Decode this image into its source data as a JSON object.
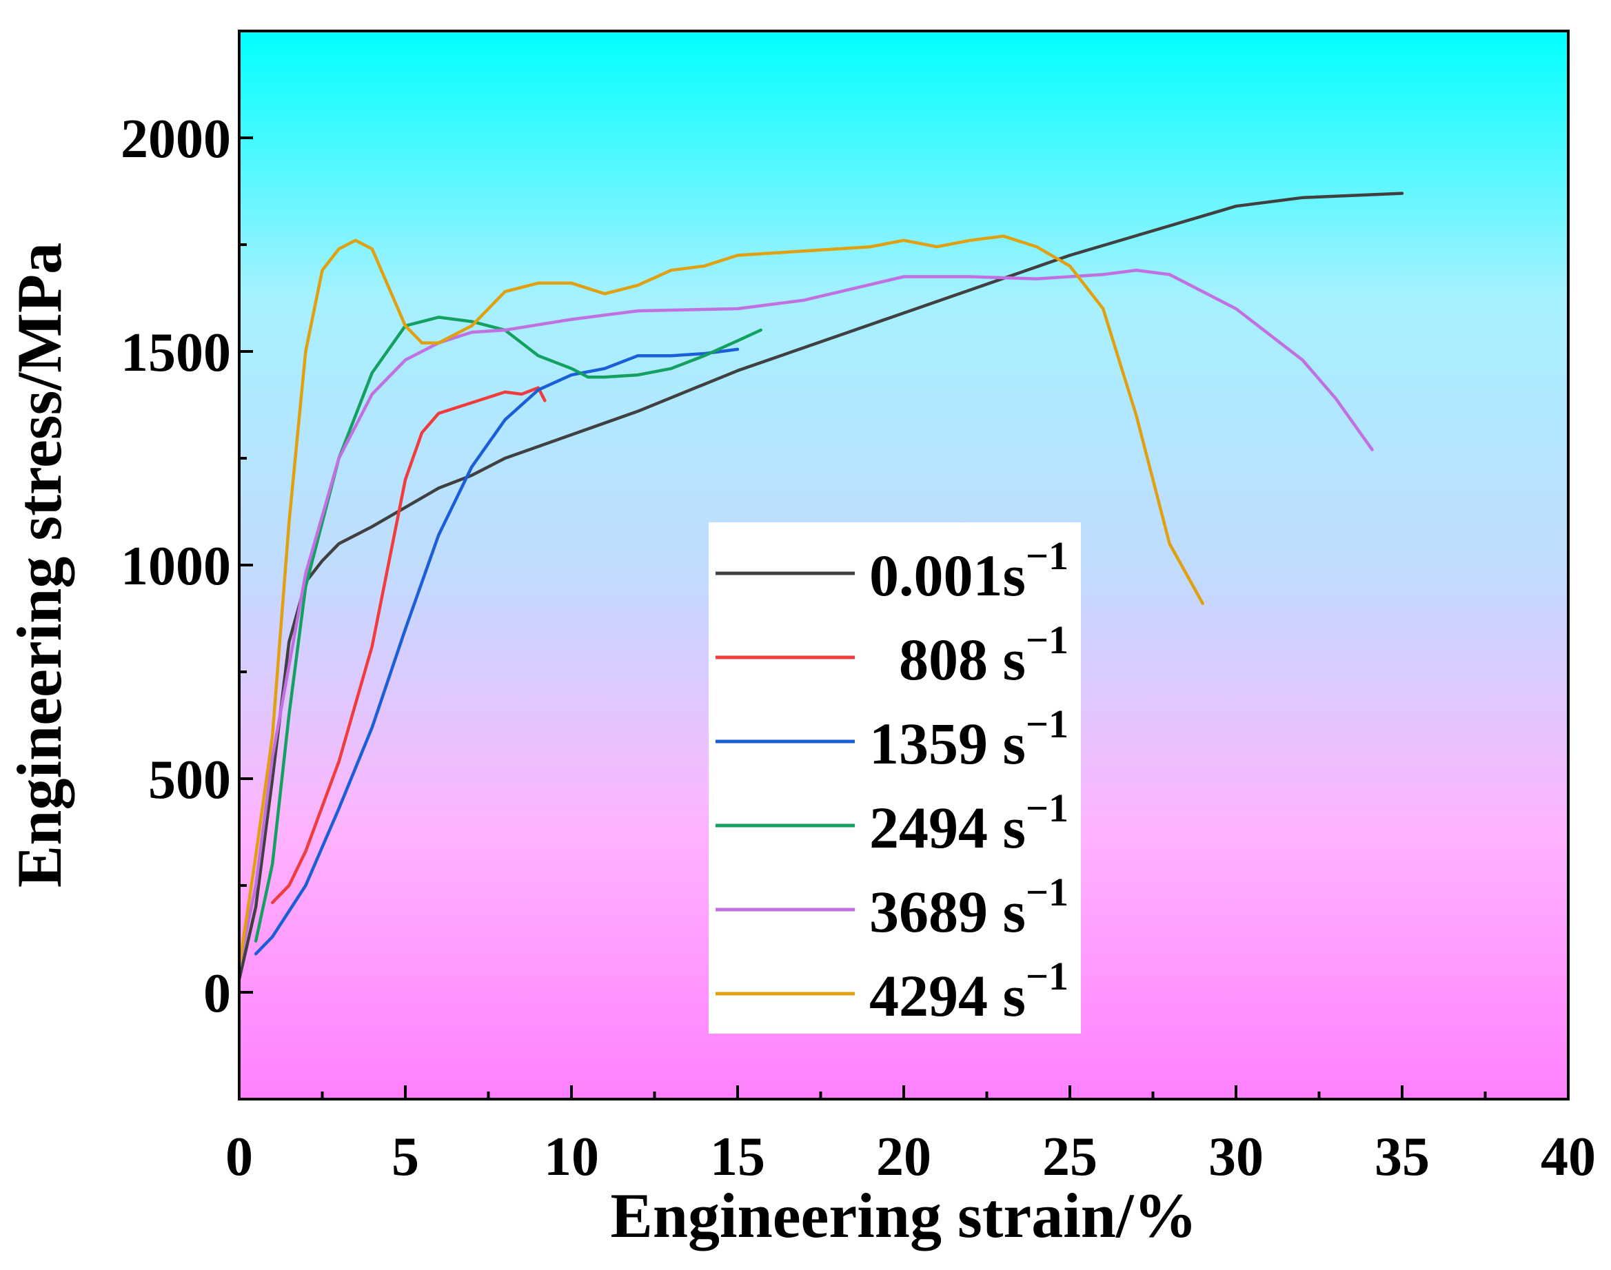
{
  "chart_data": {
    "type": "line",
    "xlabel": "Engineering strain/%",
    "ylabel": "Engineering stress/MPa",
    "xlim": [
      0,
      40
    ],
    "ylim": [
      -250,
      2250
    ],
    "x_ticks": [
      0,
      5,
      10,
      15,
      20,
      25,
      30,
      35,
      40
    ],
    "y_ticks": [
      0,
      500,
      1000,
      1500,
      2000
    ],
    "grid": false,
    "legend_position": "center-right",
    "background_gradient": [
      "#ff80ff",
      "#ffb3ff",
      "#c0dcff",
      "#a6f1ff",
      "#00ffff"
    ],
    "series": [
      {
        "name": "0.001s",
        "superscript": "−1",
        "color": "#404040",
        "points": [
          [
            0,
            30
          ],
          [
            0.5,
            200
          ],
          [
            1,
            500
          ],
          [
            1.5,
            820
          ],
          [
            2,
            960
          ],
          [
            2.5,
            1010
          ],
          [
            3,
            1050
          ],
          [
            4,
            1090
          ],
          [
            5,
            1135
          ],
          [
            6,
            1180
          ],
          [
            7,
            1210
          ],
          [
            8,
            1250
          ],
          [
            10,
            1305
          ],
          [
            12,
            1360
          ],
          [
            15,
            1455
          ],
          [
            20,
            1590
          ],
          [
            25,
            1725
          ],
          [
            30,
            1840
          ],
          [
            32,
            1860
          ],
          [
            35,
            1870
          ]
        ]
      },
      {
        "name": "808 s",
        "superscript": "−1",
        "color": "#f03c3c",
        "points": [
          [
            1,
            210
          ],
          [
            1.5,
            250
          ],
          [
            2,
            330
          ],
          [
            3,
            540
          ],
          [
            4,
            810
          ],
          [
            5,
            1200
          ],
          [
            5.5,
            1310
          ],
          [
            6,
            1355
          ],
          [
            7,
            1380
          ],
          [
            8,
            1405
          ],
          [
            8.5,
            1400
          ],
          [
            9,
            1415
          ],
          [
            9.2,
            1385
          ]
        ]
      },
      {
        "name": "1359 s",
        "superscript": "−1",
        "color": "#1a5ed8",
        "points": [
          [
            0.5,
            90
          ],
          [
            1,
            130
          ],
          [
            2,
            250
          ],
          [
            3,
            430
          ],
          [
            4,
            620
          ],
          [
            5,
            850
          ],
          [
            6,
            1070
          ],
          [
            7,
            1230
          ],
          [
            8,
            1340
          ],
          [
            9,
            1410
          ],
          [
            10,
            1445
          ],
          [
            11,
            1460
          ],
          [
            12,
            1490
          ],
          [
            13,
            1490
          ],
          [
            14,
            1495
          ],
          [
            15,
            1505
          ]
        ]
      },
      {
        "name": "2494 s",
        "superscript": "−1",
        "color": "#14a060",
        "points": [
          [
            0.5,
            120
          ],
          [
            1,
            300
          ],
          [
            1.5,
            650
          ],
          [
            2,
            950
          ],
          [
            3,
            1250
          ],
          [
            4,
            1450
          ],
          [
            5,
            1560
          ],
          [
            6,
            1580
          ],
          [
            7,
            1570
          ],
          [
            8,
            1550
          ],
          [
            9,
            1490
          ],
          [
            10,
            1460
          ],
          [
            10.5,
            1440
          ],
          [
            11,
            1440
          ],
          [
            12,
            1445
          ],
          [
            13,
            1460
          ],
          [
            14,
            1490
          ],
          [
            15,
            1525
          ],
          [
            15.7,
            1550
          ]
        ]
      },
      {
        "name": "3689 s",
        "superscript": "−1",
        "color": "#c070e0",
        "points": [
          [
            0,
            60
          ],
          [
            0.5,
            250
          ],
          [
            1,
            550
          ],
          [
            2,
            980
          ],
          [
            3,
            1250
          ],
          [
            4,
            1400
          ],
          [
            5,
            1480
          ],
          [
            6,
            1520
          ],
          [
            7,
            1545
          ],
          [
            8,
            1550
          ],
          [
            10,
            1575
          ],
          [
            12,
            1595
          ],
          [
            15,
            1600
          ],
          [
            17,
            1620
          ],
          [
            20,
            1675
          ],
          [
            22,
            1675
          ],
          [
            24,
            1670
          ],
          [
            26,
            1680
          ],
          [
            27,
            1690
          ],
          [
            28,
            1680
          ],
          [
            30,
            1600
          ],
          [
            32,
            1480
          ],
          [
            33,
            1390
          ],
          [
            34.1,
            1270
          ]
        ]
      },
      {
        "name": "4294 s",
        "superscript": "−1",
        "color": "#e0a010",
        "points": [
          [
            0,
            60
          ],
          [
            0.5,
            320
          ],
          [
            1,
            600
          ],
          [
            1.5,
            1100
          ],
          [
            2,
            1500
          ],
          [
            2.5,
            1690
          ],
          [
            3,
            1740
          ],
          [
            3.5,
            1760
          ],
          [
            4,
            1740
          ],
          [
            4.5,
            1650
          ],
          [
            5,
            1560
          ],
          [
            5.5,
            1520
          ],
          [
            6,
            1520
          ],
          [
            7,
            1560
          ],
          [
            8,
            1640
          ],
          [
            9,
            1660
          ],
          [
            10,
            1660
          ],
          [
            11,
            1635
          ],
          [
            12,
            1655
          ],
          [
            13,
            1690
          ],
          [
            14,
            1700
          ],
          [
            15,
            1725
          ],
          [
            16,
            1730
          ],
          [
            17,
            1735
          ],
          [
            18,
            1740
          ],
          [
            19,
            1745
          ],
          [
            20,
            1760
          ],
          [
            21,
            1745
          ],
          [
            22,
            1760
          ],
          [
            23,
            1770
          ],
          [
            24,
            1745
          ],
          [
            25,
            1700
          ],
          [
            26,
            1600
          ],
          [
            27,
            1350
          ],
          [
            28,
            1050
          ],
          [
            29,
            910
          ]
        ]
      }
    ]
  }
}
